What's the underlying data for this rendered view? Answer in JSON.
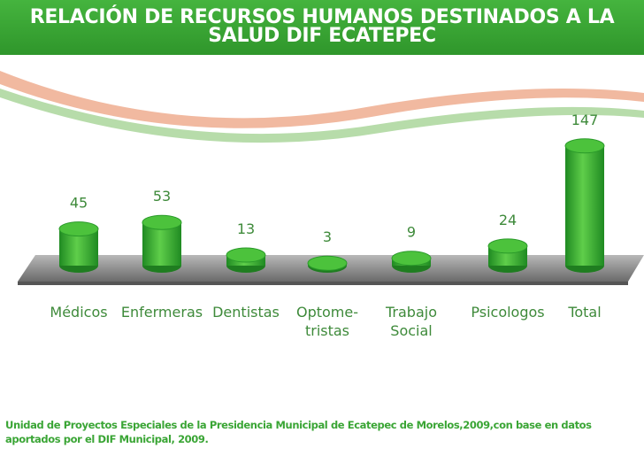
{
  "chart_data": {
    "type": "bar3d",
    "title": "RELACIÓN DE RECURSOS HUMANOS DESTINADOS A LA SALUD DIF ECATEPEC",
    "categories": [
      "Médicos",
      "Enfermeras",
      "Dentistas",
      "Optome-\ntristas",
      "Trabajo\nSocial",
      "Psicologos",
      "Total"
    ],
    "values": [
      45,
      53,
      13,
      3,
      9,
      24,
      147
    ],
    "color": "#3aa535",
    "source": "Unidad de Proyectos Especiales de la Presidencia Municipal de Ecatepec de Morelos,2009,con base en datos aportados por el DIF Municipal, 2009."
  }
}
